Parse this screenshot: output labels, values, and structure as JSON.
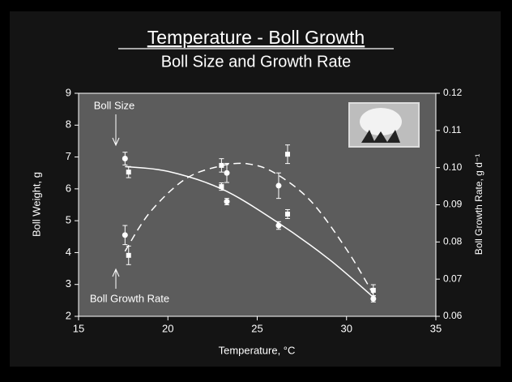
{
  "chart_data": {
    "type": "scatter",
    "title": "Temperature - Boll Growth",
    "subtitle": "Boll Size and Growth Rate",
    "x_label": "Temperature, °C",
    "y_label": "Boll Weight, g",
    "y2_label": "Boll Growth Rate, g d⁻¹",
    "annotations": [
      "Boll Size",
      "Boll Growth Rate"
    ],
    "xlim": [
      15,
      35
    ],
    "xticks": [
      15,
      20,
      25,
      30,
      35
    ],
    "ylim": [
      2,
      9
    ],
    "yticks": [
      2,
      3,
      4,
      5,
      6,
      7,
      8,
      9
    ],
    "y2lim": [
      0.06,
      0.12
    ],
    "y2ticks": [
      0.06,
      0.07,
      0.08,
      0.09,
      {
        "value": 0.1,
        "label": "0.10"
      },
      0.11,
      0.12
    ],
    "color": "#ffffff",
    "series": [
      {
        "type": "scatter",
        "marker": "circle",
        "axis": "y",
        "x": [
          17.6,
          17.6,
          23.3,
          23.3,
          26.2,
          26.2,
          31.5
        ],
        "values": [
          6.95,
          4.55,
          6.5,
          5.6,
          6.1,
          4.85,
          2.55
        ],
        "errors": [
          0.2,
          0.3,
          0.3,
          0.1,
          0.4,
          0.12,
          0.1
        ]
      },
      {
        "type": "scatter",
        "marker": "square",
        "axis": "y2",
        "x": [
          17.8,
          17.8,
          23.0,
          23.0,
          26.7,
          26.7,
          31.5
        ],
        "values": [
          0.0988,
          0.0764,
          0.1006,
          0.0949,
          0.1036,
          0.0875,
          0.067
        ],
        "errors": [
          0.0015,
          0.0025,
          0.0018,
          0.001,
          0.0025,
          0.0012,
          0.0015
        ]
      },
      {
        "type": "line",
        "dash": false,
        "axis": "y",
        "x": [
          17.6,
          20,
          23,
          26,
          29,
          31.5
        ],
        "values": [
          6.7,
          6.55,
          6.0,
          5.0,
          3.8,
          2.6
        ]
      },
      {
        "type": "line",
        "dash": true,
        "axis": "y2",
        "x": [
          17.6,
          19,
          21,
          23,
          24.5,
          26,
          28,
          30,
          31.5
        ],
        "values": [
          0.0775,
          0.088,
          0.097,
          0.1005,
          0.101,
          0.0985,
          0.091,
          0.078,
          0.066
        ]
      }
    ]
  }
}
